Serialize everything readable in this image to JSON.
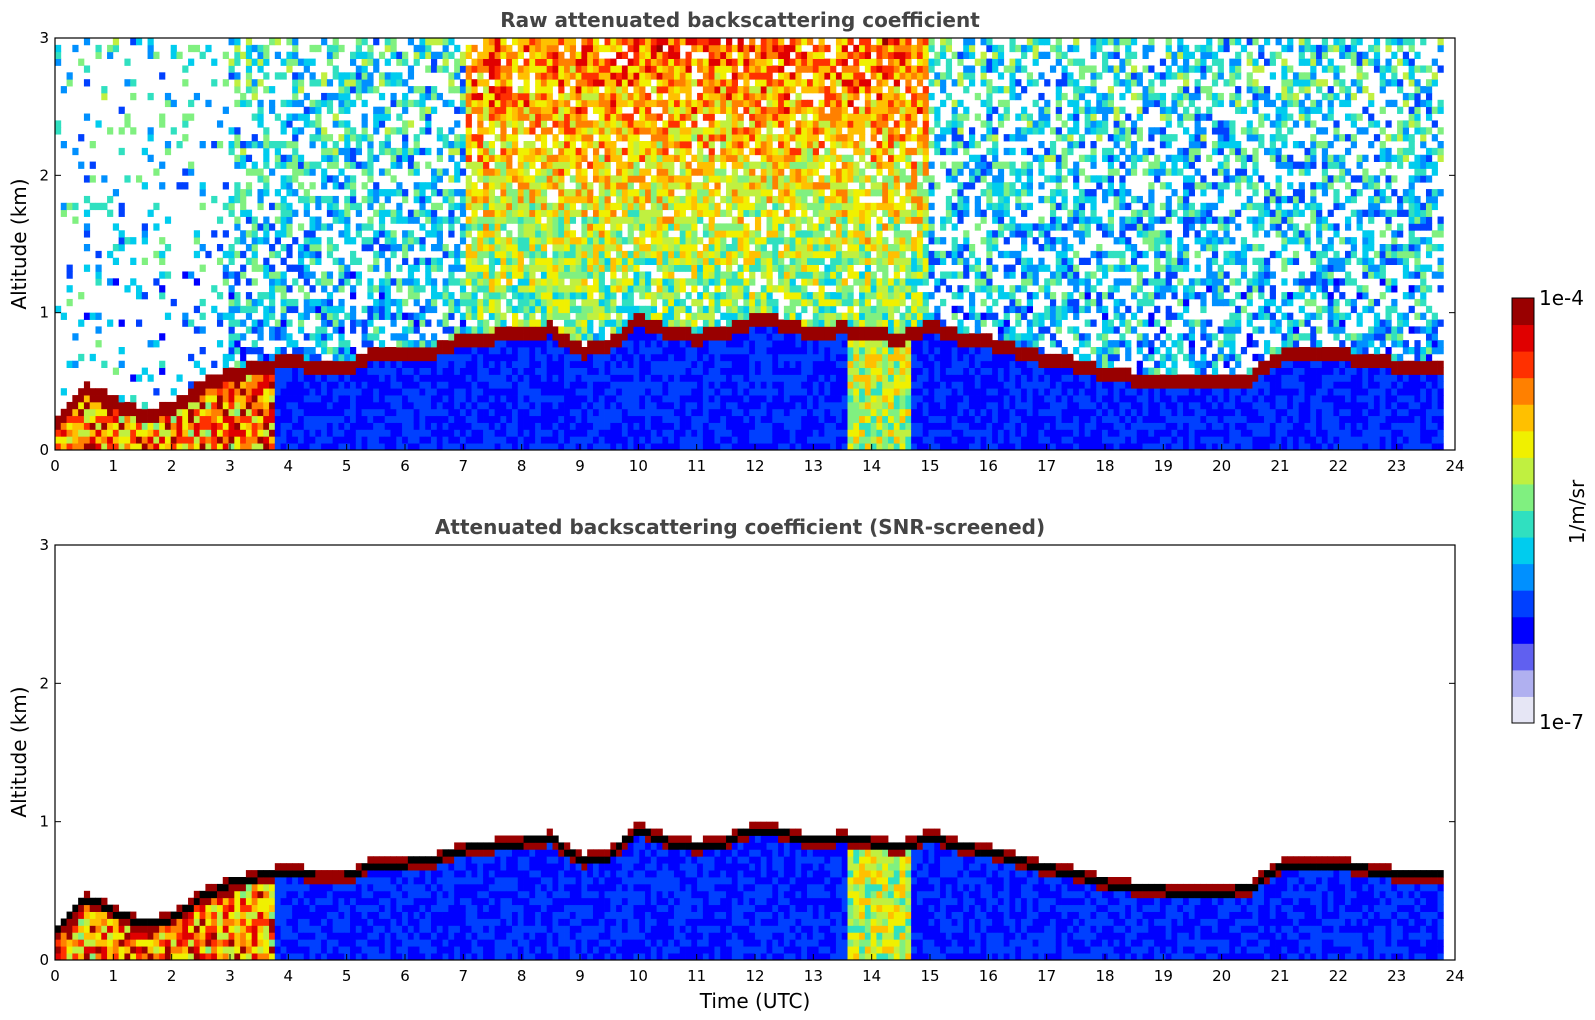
{
  "chart_data": [
    {
      "type": "heatmap",
      "title": "Raw attenuated backscattering coefficient",
      "xlabel": "",
      "ylabel": "Altitude (km)",
      "xlim": [
        0,
        24
      ],
      "ylim": [
        0,
        3
      ],
      "xticks": [
        0,
        1,
        2,
        3,
        4,
        5,
        6,
        7,
        8,
        9,
        10,
        11,
        12,
        13,
        14,
        15,
        16,
        17,
        18,
        19,
        20,
        21,
        22,
        23,
        24
      ],
      "yticks": [
        0,
        1,
        2,
        3
      ],
      "x_tick_labels": [
        "0",
        "1",
        "2",
        "3",
        "4",
        "5",
        "6",
        "7",
        "8",
        "9",
        "10",
        "11",
        "12",
        "13",
        "14",
        "15",
        "16",
        "17",
        "18",
        "19",
        "20",
        "21",
        "22",
        "23",
        "24"
      ],
      "y_tick_labels": [
        "0",
        "1",
        "2",
        "3"
      ],
      "data_end_hour": 23.8,
      "boundary_layer_top_km": {
        "hours": [
          0,
          0.5,
          1,
          1.5,
          2,
          2.5,
          3,
          3.5,
          4,
          4.5,
          5,
          5.5,
          6,
          6.5,
          7,
          7.5,
          8,
          8.5,
          9,
          9.5,
          10,
          10.5,
          11,
          11.5,
          12,
          12.5,
          13,
          13.5,
          14,
          14.5,
          15,
          15.5,
          16,
          16.5,
          17,
          17.5,
          18,
          18.5,
          19,
          19.5,
          20,
          20.5,
          21,
          21.5,
          22,
          22.5,
          23,
          23.5,
          23.8
        ],
        "values": [
          0.2,
          0.45,
          0.35,
          0.25,
          0.3,
          0.45,
          0.55,
          0.6,
          0.65,
          0.6,
          0.6,
          0.7,
          0.7,
          0.72,
          0.8,
          0.82,
          0.85,
          0.88,
          0.72,
          0.75,
          0.95,
          0.85,
          0.82,
          0.85,
          0.95,
          0.92,
          0.85,
          0.88,
          0.85,
          0.8,
          0.9,
          0.82,
          0.78,
          0.72,
          0.66,
          0.62,
          0.55,
          0.52,
          0.5,
          0.48,
          0.48,
          0.52,
          0.68,
          0.7,
          0.7,
          0.65,
          0.62,
          0.6,
          0.62
        ]
      }
    },
    {
      "type": "heatmap",
      "title": "Attenuated backscattering coefficient (SNR-screened)",
      "xlabel": "Time (UTC)",
      "ylabel": "Altitude (km)",
      "xlim": [
        0,
        24
      ],
      "ylim": [
        0,
        3
      ],
      "xticks": [
        0,
        1,
        2,
        3,
        4,
        5,
        6,
        7,
        8,
        9,
        10,
        11,
        12,
        13,
        14,
        15,
        16,
        17,
        18,
        19,
        20,
        21,
        22,
        23,
        24
      ],
      "yticks": [
        0,
        1,
        2,
        3
      ],
      "x_tick_labels": [
        "0",
        "1",
        "2",
        "3",
        "4",
        "5",
        "6",
        "7",
        "8",
        "9",
        "10",
        "11",
        "12",
        "13",
        "14",
        "15",
        "16",
        "17",
        "18",
        "19",
        "20",
        "21",
        "22",
        "23",
        "24"
      ],
      "y_tick_labels": [
        "0",
        "1",
        "2",
        "3"
      ],
      "data_end_hour": 23.8
    }
  ],
  "colorbar": {
    "label": "1/m/sr",
    "max_label": "1e-4",
    "min_label": "1e-7",
    "colors": [
      "#e6e6f5",
      "#b0b0f0",
      "#6060f0",
      "#0000ff",
      "#0040ff",
      "#0090ff",
      "#00ccee",
      "#30e0c0",
      "#80f080",
      "#c0f040",
      "#f0f000",
      "#ffc000",
      "#ff8000",
      "#ff3000",
      "#e00000",
      "#990000"
    ]
  }
}
